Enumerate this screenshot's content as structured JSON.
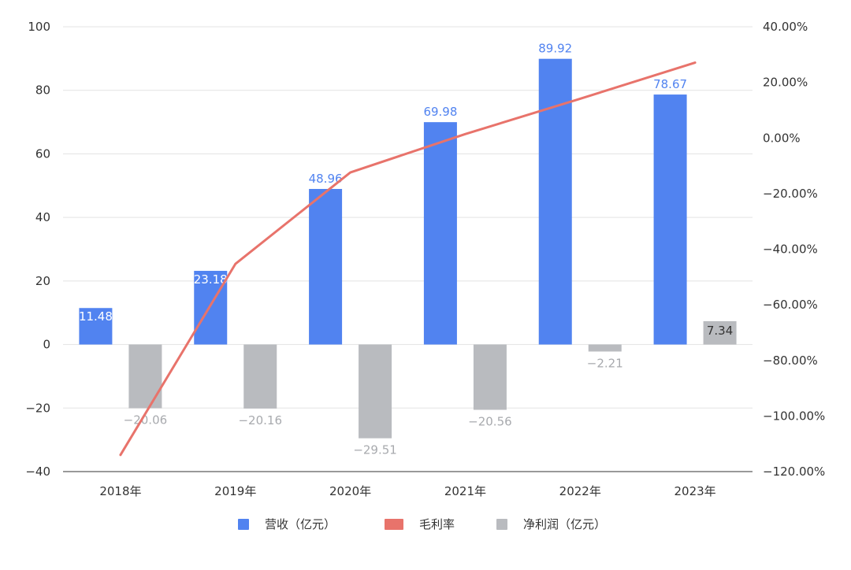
{
  "chart_data": {
    "type": "bar",
    "categories": [
      "2018年",
      "2019年",
      "2020年",
      "2021年",
      "2022年",
      "2023年"
    ],
    "y_left": {
      "ylim": [
        -40,
        100
      ],
      "ticks": [
        "−40",
        "−20",
        "0",
        "20",
        "40",
        "60",
        "80",
        "100"
      ],
      "tick_values": [
        -40,
        -20,
        0,
        20,
        40,
        60,
        80,
        100
      ]
    },
    "y_right": {
      "ylim": [
        -120,
        40
      ],
      "ticks": [
        "−120.00%",
        "−100.00%",
        "−80.00%",
        "−60.00%",
        "−40.00%",
        "−20.00%",
        "0.00%",
        "20.00%",
        "40.00%"
      ],
      "tick_values": [
        -120,
        -100,
        -80,
        -60,
        -40,
        -20,
        0,
        20,
        40
      ]
    },
    "series": [
      {
        "name": "营收（亿元）",
        "kind": "bar",
        "axis": "left",
        "color": "#5183F0",
        "values": [
          11.48,
          23.18,
          48.96,
          69.98,
          89.92,
          78.67
        ],
        "labels": [
          "11.48",
          "23.18",
          "48.96",
          "69.98",
          "89.92",
          "78.67"
        ]
      },
      {
        "name": "毛利率",
        "kind": "line",
        "axis": "right",
        "color": "#E8736B",
        "values": [
          -114.0,
          -45.3,
          -12.4,
          1.4,
          14.1,
          27.1
        ]
      },
      {
        "name": "净利润（亿元）",
        "kind": "bar",
        "axis": "left",
        "color": "#B9BBBF",
        "values": [
          -20.06,
          -20.16,
          -29.51,
          -20.56,
          -2.21,
          7.34
        ],
        "labels": [
          "−20.06",
          "−20.16",
          "−29.51",
          "−20.56",
          "−2.21",
          "7.34"
        ]
      }
    ],
    "grid": true,
    "legend_position": "bottom"
  }
}
